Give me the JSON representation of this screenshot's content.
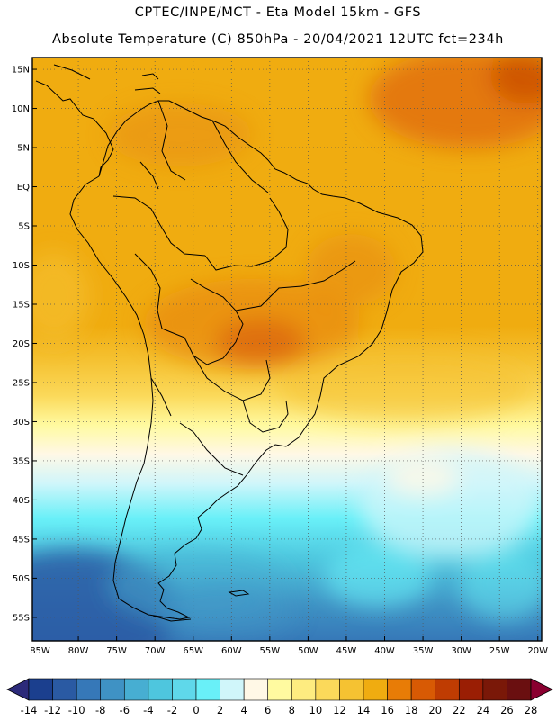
{
  "header": {
    "line1": "CPTEC/INPE/MCT -  Eta Model 15km - GFS",
    "line2": "Absolute Temperature (C) 850hPa - 20/04/2021 12UTC fct=234h"
  },
  "map": {
    "lat_labels": [
      "15N",
      "10N",
      "5N",
      "EQ",
      "5S",
      "10S",
      "15S",
      "20S",
      "25S",
      "30S",
      "35S",
      "40S",
      "45S",
      "50S",
      "55S"
    ],
    "lon_labels": [
      "85W",
      "80W",
      "75W",
      "70W",
      "65W",
      "60W",
      "55W",
      "50W",
      "45W",
      "40W",
      "35W",
      "30W",
      "25W",
      "20W"
    ],
    "extent": {
      "lon_min": -86,
      "lon_max": -19.5,
      "lat_min": -58,
      "lat_max": 16.5
    },
    "grid": "dotted every 5 degrees"
  },
  "colorbar": {
    "labels": [
      "-14",
      "-12",
      "-10",
      "-8",
      "-6",
      "-4",
      "-2",
      "0",
      "2",
      "4",
      "6",
      "8",
      "10",
      "12",
      "14",
      "16",
      "18",
      "20",
      "22",
      "24",
      "26",
      "28"
    ],
    "colors": [
      "#1b3f8e",
      "#2a5aa3",
      "#3678b8",
      "#3f92c4",
      "#47aed2",
      "#4ec6de",
      "#5fd8ea",
      "#69f0f8",
      "#d0f6fa",
      "#fff8e6",
      "#fffaa0",
      "#feec80",
      "#fbd95a",
      "#f5c232",
      "#f0ac10",
      "#e87c06",
      "#d85a04",
      "#bf3c02",
      "#9a1e04",
      "#7a1808",
      "#6a0f10"
    ]
  }
}
